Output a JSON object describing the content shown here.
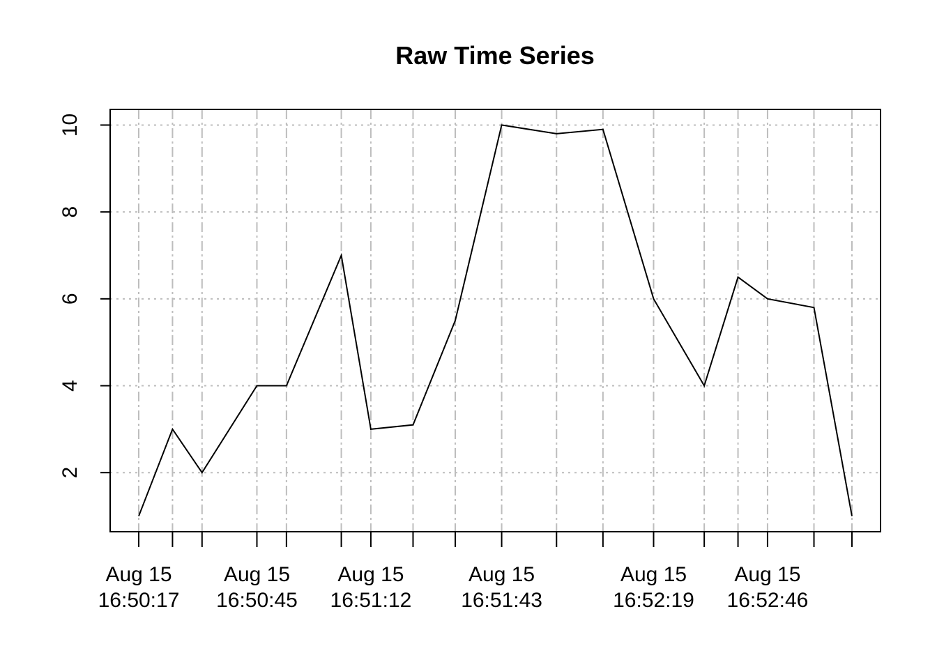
{
  "chart_data": {
    "type": "line",
    "title": "Raw Time Series",
    "xlabel": "",
    "ylabel": "",
    "ylim": [
      0.64,
      10.36
    ],
    "yticks": [
      2,
      4,
      6,
      8,
      10
    ],
    "grid": true,
    "xtick_labels": [
      {
        "time": "2023-08-15 16:50:17",
        "line1": "Aug 15",
        "line2": "16:50:17"
      },
      {
        "time": "2023-08-15 16:50:45",
        "line1": "Aug 15",
        "line2": "16:50:45"
      },
      {
        "time": "2023-08-15 16:51:12",
        "line1": "Aug 15",
        "line2": "16:51:12"
      },
      {
        "time": "2023-08-15 16:51:43",
        "line1": "Aug 15",
        "line2": "16:51:43"
      },
      {
        "time": "2023-08-15 16:52:19",
        "line1": "Aug 15",
        "line2": "16:52:19"
      },
      {
        "time": "2023-08-15 16:52:46",
        "line1": "Aug 15",
        "line2": "16:52:46"
      }
    ],
    "series": [
      {
        "x": [
          "2023-08-15 16:50:17",
          "2023-08-15 16:50:25",
          "2023-08-15 16:50:32",
          "2023-08-15 16:50:45",
          "2023-08-15 16:50:52",
          "2023-08-15 16:51:05",
          "2023-08-15 16:51:12",
          "2023-08-15 16:51:22",
          "2023-08-15 16:51:32",
          "2023-08-15 16:51:43",
          "2023-08-15 16:51:56",
          "2023-08-15 16:52:07",
          "2023-08-15 16:52:19",
          "2023-08-15 16:52:31",
          "2023-08-15 16:52:39",
          "2023-08-15 16:52:46",
          "2023-08-15 16:52:57",
          "2023-08-15 16:53:06"
        ],
        "values": [
          1,
          3,
          2,
          4,
          4,
          7,
          3,
          3.1,
          5.5,
          10,
          9.8,
          9.9,
          6,
          4,
          6.5,
          6,
          5.8,
          1
        ]
      }
    ]
  }
}
